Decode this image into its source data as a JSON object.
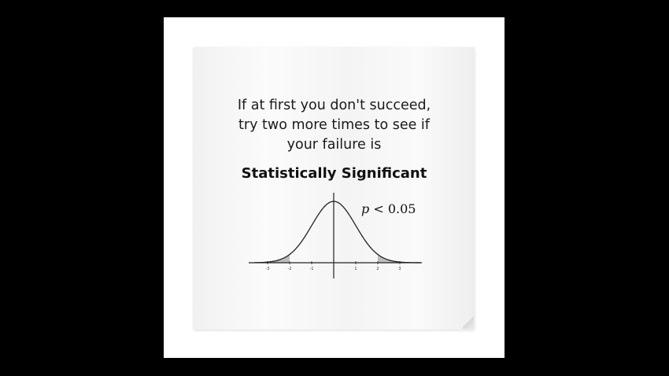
{
  "poster": {
    "line1": "If at first you don't succeed,",
    "line2": "try two more times to see if",
    "line3": "your failure is",
    "headline": "Statistically Significant",
    "p_symbol": "p",
    "p_rest": " < 0.05"
  },
  "chart_data": {
    "type": "line",
    "title": "",
    "xlabel": "",
    "ylabel": "",
    "xlim": [
      -3.6,
      4.0
    ],
    "curve": "standard normal distribution",
    "x_ticks": [
      -3,
      -2,
      -1,
      1,
      2,
      3
    ],
    "shaded_tails": [
      [
        -3.6,
        -2
      ],
      [
        2,
        4.0
      ]
    ],
    "colors": {
      "line": "#222222",
      "tail": "#bdbdbd"
    }
  }
}
